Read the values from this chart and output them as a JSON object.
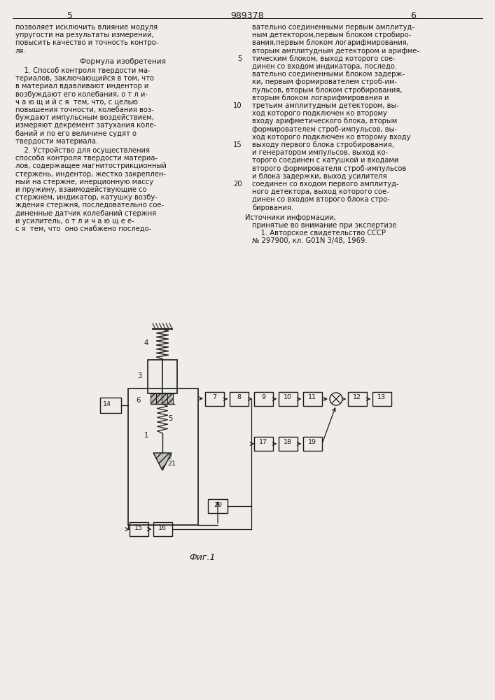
{
  "page_number_left": "5",
  "page_number_center": "989378",
  "page_number_right": "6",
  "background_color": "#f0ede8",
  "text_color": "#1a1a1a",
  "left_column_lines": [
    "позволяет исключить влияние модуля",
    "упругости на результаты измерений,",
    "повысить качество и точность контро-",
    "ля."
  ],
  "formula_header": "Формула изобретения",
  "left_para1_lines": [
    "    1. Способ контроля твердости ма-",
    "териалов, заключающийся в том, что",
    "в материал вдавливают индентор и",
    "возбуждают его колебания, о т л и-",
    "ч а ю щ и й с я  тем, что, с целью",
    "повышения точности, колебания воз-",
    "буждают импульсным воздействием,",
    "измеряют декремент затухания коле-",
    "баний и по его величине судят о",
    "твердости материала."
  ],
  "left_para2_lines": [
    "    2. Устройство для осуществления",
    "способа контроля твердости материа-",
    "лов, содержащее магнитострикционный",
    "стержень, индентор, жестко закреплен-",
    "ный на стержне, инерционную массу",
    "и пружину, взаимодействующие со",
    "стержнем, индикатор, катушку возбу-",
    "ждения стержня, последовательно сое-",
    "диненные датчик колебаний стержня",
    "и усилитель, о т л и ч а ю щ е е-",
    "с я  тем, что  оно снабжено последо-"
  ],
  "right_col_lines": [
    "вательно соединенными первым амплитуд-",
    "ным детектором,первым блоком стробиро-",
    "вания,первым блоком логарифмирования,",
    "вторым амплитудным детектором и арифме-"
  ],
  "right_numbered_lines": [
    [
      5,
      "тическим блоком, выход которого сое-"
    ],
    [
      0,
      "динен со входом индикатора, последо."
    ],
    [
      0,
      "вательно соединенными блоком задерж-"
    ],
    [
      0,
      "ки, первым формирователем строб-им-"
    ],
    [
      0,
      "пульсов, вторым блоком стробирования,"
    ],
    [
      0,
      "вторым блоком логарифмирования и"
    ],
    [
      10,
      "третьим амплитудным детектором, вы-"
    ],
    [
      0,
      "ход которого подключен ко второму"
    ],
    [
      0,
      "входу арифметического блока, вторым"
    ],
    [
      0,
      "формирователем строб-импульсов, вы-"
    ],
    [
      0,
      "ход которого подключен ко второму входу"
    ],
    [
      15,
      "выходу первого блока стробирования,"
    ],
    [
      0,
      "и генератором импульсов, выход ко-"
    ],
    [
      0,
      "торого соединен с катушкой и входами"
    ],
    [
      0,
      "второго формирователя строб-импульсов"
    ],
    [
      0,
      "и блока задержки, выход усилителя"
    ],
    [
      20,
      "соединен со входом первого амплитуд-"
    ],
    [
      0,
      "ного детектора, выход которого сое-"
    ],
    [
      0,
      "динен со входом второго блока стро-"
    ],
    [
      0,
      "бирования."
    ]
  ],
  "sources_header": "Источники информации,",
  "sources_line2": "принятые во внимание при экспертизе",
  "source_ref": "    1. Авторское свидетельство СССР",
  "source_ref2": "№ 297900, кл. G01N 3/48, 1969.",
  "fig_label": "Фиг.1"
}
